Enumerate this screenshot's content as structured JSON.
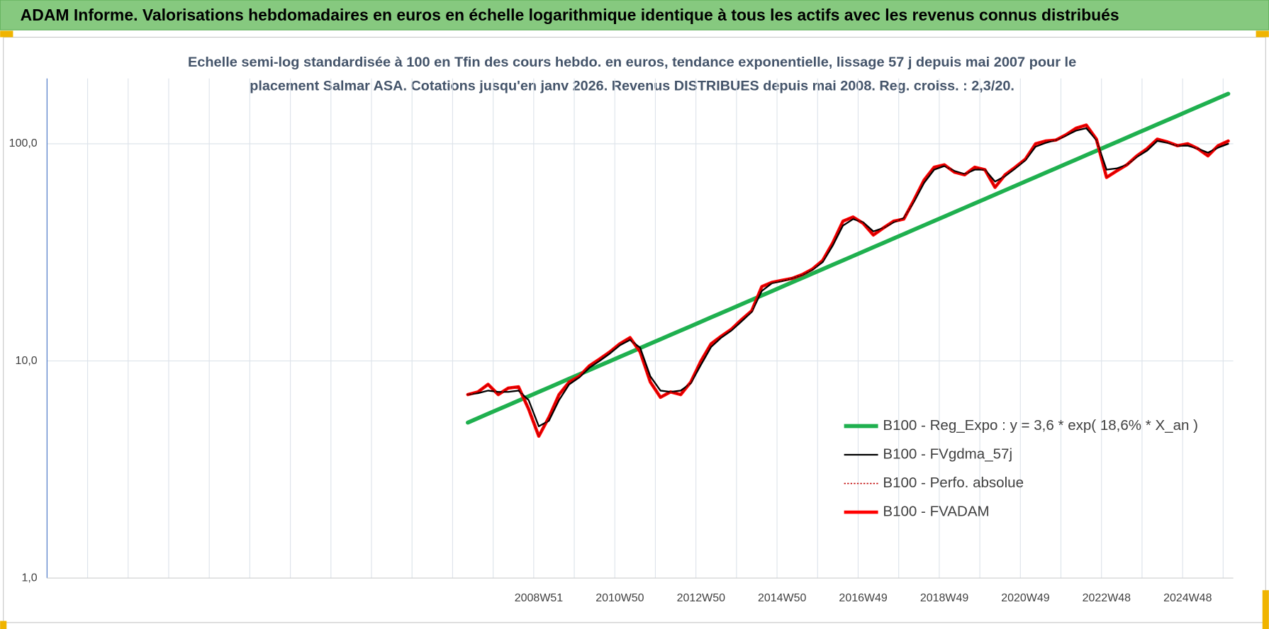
{
  "chart_data": {
    "type": "line",
    "title": "ADAM Informe. Valorisations hebdomadaires en euros en échelle logarithmique identique à tous les actifs avec les revenus connus distribués",
    "subtitle": [
      "Echelle semi-log standardisée à 100 en Tfin des cours hebdo. en euros, tendance exponentielle, lissage 57 j depuis mai 2007 pour le",
      "placement Salmar ASA. Cotations jusqu'en janv 2026. Revenus DISTRIBUES depuis mai 2008. Reg. croiss. : 2,3/20."
    ],
    "log_scale": true,
    "grid": true,
    "legend": "lower right",
    "ylim": [
      1,
      200
    ],
    "yticks": [
      {
        "value": 1,
        "label": "1,0"
      },
      {
        "value": 10,
        "label": "10,0"
      },
      {
        "value": 100,
        "label": "100,0"
      }
    ],
    "categories": [
      null,
      null,
      null,
      null,
      null,
      null,
      null,
      null,
      null,
      null,
      null,
      null,
      null,
      null,
      null,
      null,
      null,
      null,
      null,
      null,
      null,
      null,
      null,
      null,
      null,
      null,
      null,
      null,
      null,
      null,
      null,
      null,
      null,
      null,
      null,
      null,
      null,
      null,
      null,
      null,
      null,
      null,
      null,
      null,
      null,
      null,
      null,
      null,
      "2008W51",
      null,
      null,
      null,
      null,
      null,
      null,
      null,
      "2010W50",
      null,
      null,
      null,
      null,
      null,
      null,
      null,
      "2012W50",
      null,
      null,
      null,
      null,
      null,
      null,
      null,
      "2014W50",
      null,
      null,
      null,
      null,
      null,
      null,
      null,
      "2016W49",
      null,
      null,
      null,
      null,
      null,
      null,
      null,
      "2018W49",
      null,
      null,
      null,
      null,
      null,
      null,
      null,
      "2020W49",
      null,
      null,
      null,
      null,
      null,
      null,
      null,
      "2022W48",
      null,
      null,
      null,
      null,
      null,
      null,
      null,
      "2024W48",
      null,
      null,
      null,
      null
    ],
    "series": [
      {
        "name": "B100 - Reg_Expo : y = 3,6 * exp( 18,6% *  X_an )",
        "color": "#1fb04f",
        "line_width": 5,
        "values": [
          null,
          null,
          null,
          null,
          null,
          null,
          null,
          null,
          null,
          null,
          null,
          null,
          null,
          null,
          null,
          null,
          null,
          null,
          null,
          null,
          null,
          null,
          null,
          null,
          null,
          null,
          null,
          null,
          null,
          null,
          null,
          null,
          null,
          null,
          null,
          null,
          null,
          null,
          null,
          null,
          null,
          5.2,
          5.45,
          5.71,
          5.98,
          6.26,
          6.56,
          6.87,
          7.2,
          7.54,
          7.9,
          8.28,
          8.67,
          9.08,
          9.52,
          9.97,
          10.44,
          10.94,
          11.46,
          12.01,
          12.58,
          13.18,
          13.8,
          14.46,
          15.15,
          15.87,
          16.62,
          17.41,
          18.24,
          19.11,
          20.02,
          20.97,
          21.97,
          23.02,
          24.11,
          25.26,
          26.46,
          27.72,
          29.04,
          30.42,
          31.87,
          33.39,
          34.98,
          36.64,
          38.39,
          40.21,
          42.13,
          44.13,
          46.23,
          48.43,
          50.74,
          53.15,
          55.68,
          58.33,
          61.11,
          64.02,
          67.07,
          70.26,
          73.6,
          77.11,
          80.78,
          84.62,
          88.65,
          92.87,
          97.29,
          101.9,
          106.8,
          111.9,
          117.2,
          122.8,
          128.6,
          134.7,
          141.2,
          147.9,
          154.9,
          162.3,
          170.0
        ]
      },
      {
        "name": "B100 - FVgdma_57j",
        "color": "#000000",
        "line_width": 2,
        "values": [
          null,
          null,
          null,
          null,
          null,
          null,
          null,
          null,
          null,
          null,
          null,
          null,
          null,
          null,
          null,
          null,
          null,
          null,
          null,
          null,
          null,
          null,
          null,
          null,
          null,
          null,
          null,
          null,
          null,
          null,
          null,
          null,
          null,
          null,
          null,
          null,
          null,
          null,
          null,
          null,
          null,
          7.0,
          7.1,
          7.3,
          7.2,
          7.2,
          7.3,
          6.6,
          5.0,
          5.3,
          6.6,
          7.8,
          8.4,
          9.3,
          10.0,
          10.8,
          11.8,
          12.5,
          11.5,
          8.5,
          7.3,
          7.2,
          7.3,
          7.9,
          9.6,
          11.6,
          12.8,
          13.8,
          15.2,
          16.8,
          21.0,
          22.8,
          23.3,
          24.0,
          24.9,
          26.3,
          28.5,
          34.0,
          42.0,
          45.0,
          43.5,
          39.5,
          41.0,
          43.5,
          45.5,
          54.0,
          66.0,
          76.0,
          79.0,
          75.0,
          72.5,
          76.0,
          76.0,
          67.0,
          71.0,
          77.0,
          84.0,
          97.0,
          101.0,
          104.0,
          109.0,
          115.0,
          118.0,
          104.0,
          76.0,
          77.0,
          80.0,
          87.0,
          93.0,
          103.0,
          101.0,
          98.0,
          98.0,
          95.0,
          91.0,
          96.0,
          100.0
        ]
      },
      {
        "name": "B100 - Perfo. absolue",
        "color": "#c00000",
        "line_width": 1.5,
        "dash": "dotted",
        "values": [
          null,
          null,
          null,
          null,
          null,
          null,
          null,
          null,
          null,
          null,
          null,
          null,
          null,
          null,
          null,
          null,
          null,
          null,
          null,
          null,
          null,
          null,
          null,
          null,
          null,
          null,
          null,
          null,
          null,
          null,
          null,
          null,
          null,
          null,
          null,
          null,
          null,
          null,
          null,
          null,
          null,
          7.0,
          7.2,
          7.8,
          7.0,
          7.5,
          7.6,
          6.0,
          4.5,
          5.5,
          7.0,
          8.0,
          8.5,
          9.5,
          10.2,
          11.0,
          12.0,
          12.8,
          11.0,
          8.0,
          6.8,
          7.2,
          7.0,
          8.0,
          10.0,
          12.0,
          13.0,
          14.0,
          15.5,
          17.0,
          22.0,
          23.0,
          23.5,
          24.0,
          25.0,
          26.5,
          29.0,
          35.0,
          44.0,
          46.0,
          43.0,
          38.0,
          41.0,
          44.0,
          45.0,
          55.0,
          68.0,
          78.0,
          80.0,
          74.0,
          72.0,
          78.0,
          76.0,
          63.0,
          72.0,
          78.0,
          85.0,
          100.0,
          103.0,
          104.0,
          110.0,
          118.0,
          122.0,
          105.0,
          70.0,
          75.0,
          80.0,
          88.0,
          95.0,
          105.0,
          102.0,
          98.0,
          100.0,
          95.0,
          88.0,
          98.0,
          103.0
        ]
      },
      {
        "name": "B100 - FVADAM",
        "color": "#ff0000",
        "line_width": 4,
        "values": [
          null,
          null,
          null,
          null,
          null,
          null,
          null,
          null,
          null,
          null,
          null,
          null,
          null,
          null,
          null,
          null,
          null,
          null,
          null,
          null,
          null,
          null,
          null,
          null,
          null,
          null,
          null,
          null,
          null,
          null,
          null,
          null,
          null,
          null,
          null,
          null,
          null,
          null,
          null,
          null,
          null,
          7.0,
          7.2,
          7.8,
          7.0,
          7.5,
          7.6,
          6.0,
          4.5,
          5.5,
          7.0,
          8.0,
          8.5,
          9.5,
          10.2,
          11.0,
          12.0,
          12.8,
          11.0,
          8.0,
          6.8,
          7.2,
          7.0,
          8.0,
          10.0,
          12.0,
          13.0,
          14.0,
          15.5,
          17.0,
          22.0,
          23.0,
          23.5,
          24.0,
          25.0,
          26.5,
          29.0,
          35.0,
          44.0,
          46.0,
          43.0,
          38.0,
          41.0,
          44.0,
          45.0,
          55.0,
          68.0,
          78.0,
          80.0,
          74.0,
          72.0,
          78.0,
          76.0,
          63.0,
          72.0,
          78.0,
          85.0,
          100.0,
          103.0,
          104.0,
          110.0,
          118.0,
          122.0,
          105.0,
          70.0,
          75.0,
          80.0,
          88.0,
          95.0,
          105.0,
          102.0,
          98.0,
          100.0,
          95.0,
          88.0,
          98.0,
          103.0
        ]
      }
    ]
  }
}
